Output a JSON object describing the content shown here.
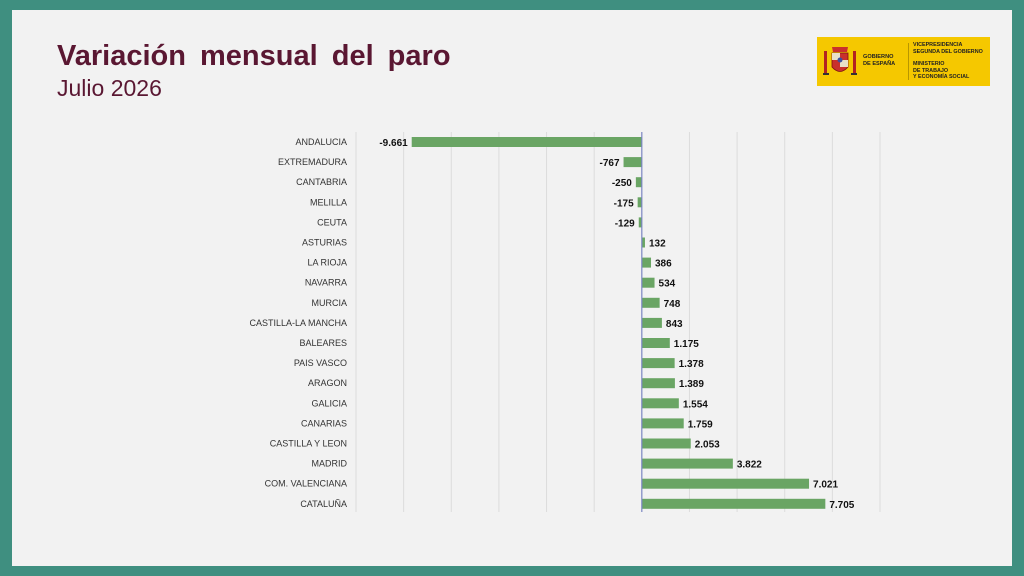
{
  "header": {
    "title": "Variación  mensual  del paro",
    "subtitle": "Julio 2026"
  },
  "logo": {
    "left_lines": [
      "GOBIERNO",
      "DE ESPAÑA"
    ],
    "right_lines_1": [
      "VICEPRESIDENCIA",
      "SEGUNDA DEL GOBIERNO"
    ],
    "right_lines_2": [
      "MINISTERIO",
      "DE TRABAJO",
      "Y ECONOMÍA SOCIAL"
    ]
  },
  "colors": {
    "bar": "#6aa564",
    "axis": "#7b86c2",
    "grid": "#dcdcdc",
    "title": "#5a1732",
    "background": "#3f8f80"
  },
  "chart_data": {
    "type": "bar",
    "orientation": "horizontal",
    "categories": [
      "ANDALUCIA",
      "EXTREMADURA",
      "CANTABRIA",
      "MELILLA",
      "CEUTA",
      "ASTURIAS",
      "LA RIOJA",
      "NAVARRA",
      "MURCIA",
      "CASTILLA-LA MANCHA",
      "BALEARES",
      "PAIS VASCO",
      "ARAGON",
      "GALICIA",
      "CANARIAS",
      "CASTILLA Y LEON",
      "MADRID",
      "COM. VALENCIANA",
      "CATALUÑA"
    ],
    "values": [
      -9661,
      -767,
      -250,
      -175,
      -129,
      132,
      386,
      534,
      748,
      843,
      1175,
      1378,
      1389,
      1554,
      1759,
      2053,
      3822,
      7021,
      7705
    ],
    "labels": [
      "-9.661",
      "-767",
      "-250",
      "-175",
      "-129",
      "132",
      "386",
      "534",
      "748",
      "843",
      "1.175",
      "1.378",
      "1.389",
      "1.554",
      "1.759",
      "2.053",
      "3.822",
      "7.021",
      "7.705"
    ],
    "xlim": [
      -12000,
      10000
    ],
    "grid_step": 2000,
    "grid": true,
    "legend": false,
    "title": "",
    "xlabel": "",
    "ylabel": ""
  }
}
